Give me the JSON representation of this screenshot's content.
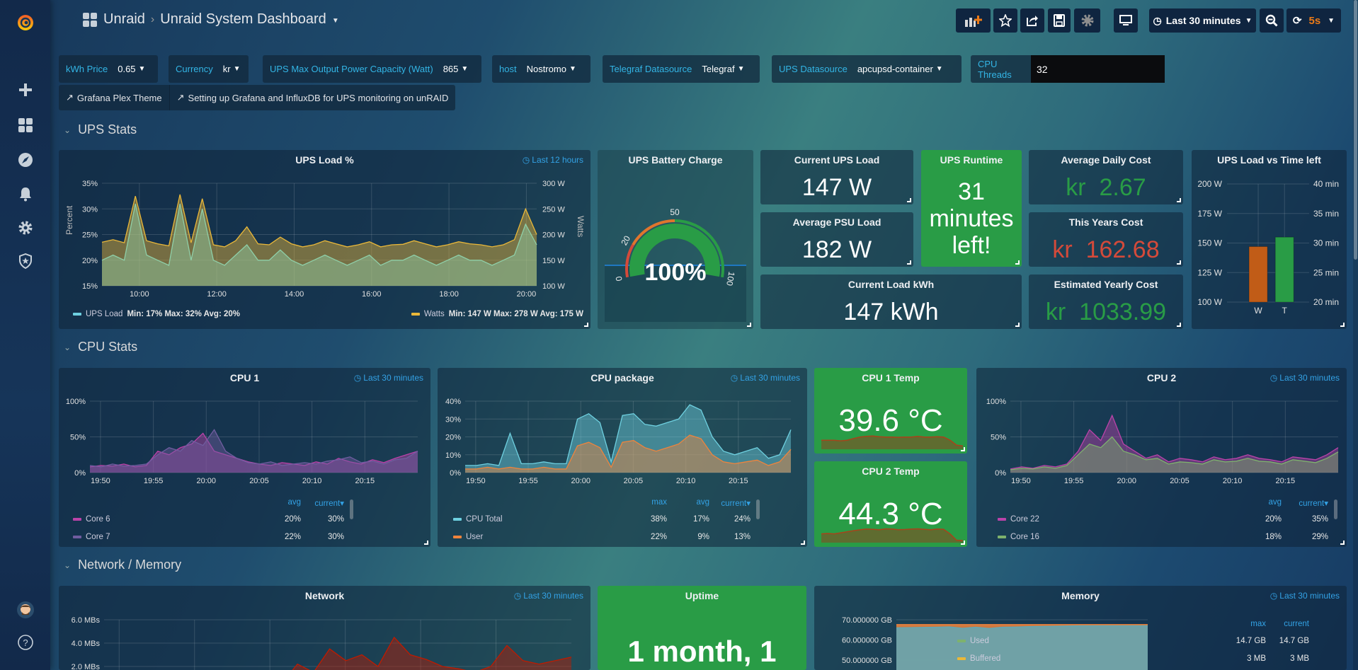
{
  "header": {
    "org": "Unraid",
    "dashboard": "Unraid System Dashboard",
    "time_range": "Last 30 minutes",
    "refresh": "5s"
  },
  "colors": {
    "green": "#299c46",
    "red": "#d44a3a",
    "orange": "#e0752d",
    "yellow": "#eab839",
    "accent_blue": "#33b5e5"
  },
  "variables": [
    {
      "label": "kWh Price",
      "value": "0.65"
    },
    {
      "label": "Currency",
      "value": "kr"
    },
    {
      "label": "UPS Max Output Power Capacity (Watt)",
      "value": "865"
    },
    {
      "label": "host",
      "value": "Nostromo"
    },
    {
      "label": "Telegraf Datasource",
      "value": "Telegraf"
    },
    {
      "label": "UPS Datasource",
      "value": "apcupsd-container"
    },
    {
      "label": "CPU Threads",
      "value": "32"
    }
  ],
  "links": [
    "Grafana Plex Theme",
    "Setting up Grafana and InfluxDB for UPS monitoring on unRAID"
  ],
  "rows": [
    "UPS Stats",
    "CPU Stats",
    "Network / Memory"
  ],
  "panels": {
    "ups_load": {
      "title": "UPS Load %",
      "time_override": "Last 12 hours",
      "ylabel": "Percent",
      "y2label": "Watts",
      "legend": [
        {
          "name": "UPS Load",
          "stats": "Min: 17%  Max: 32%  Avg: 20%"
        },
        {
          "name": "Watts",
          "stats": "Min: 147 W  Max: 278 W  Avg: 175 W"
        }
      ]
    },
    "battery": {
      "title": "UPS Battery Charge",
      "value": "100%"
    },
    "current_ups_load": {
      "title": "Current UPS Load",
      "value": "147 W"
    },
    "avg_psu_load": {
      "title": "Average PSU Load",
      "value": "182 W"
    },
    "current_kwh": {
      "title": "Current Load kWh",
      "value": "147 kWh"
    },
    "runtime": {
      "title": "UPS Runtime",
      "lines": [
        "31",
        "minutes",
        "left!"
      ]
    },
    "avg_daily_cost": {
      "title": "Average Daily Cost",
      "prefix": "kr",
      "value": "2.67"
    },
    "year_cost": {
      "title": "This Years Cost",
      "prefix": "kr",
      "value": "162.68"
    },
    "yearly_cost": {
      "title": "Estimated Yearly Cost",
      "prefix": "kr",
      "value": "1033.99"
    },
    "load_vs_time": {
      "title": "UPS Load vs Time left"
    },
    "cpu1": {
      "title": "CPU 1",
      "time_override": "Last 30 minutes",
      "cols": [
        "avg",
        "current"
      ],
      "rows": [
        {
          "name": "Core 6",
          "avg": "20%",
          "current": "30%"
        },
        {
          "name": "Core 7",
          "avg": "22%",
          "current": "30%"
        }
      ]
    },
    "cpu_package": {
      "title": "CPU package",
      "time_override": "Last 30 minutes",
      "cols": [
        "max",
        "avg",
        "current"
      ],
      "rows": [
        {
          "name": "CPU Total",
          "max": "38%",
          "avg": "17%",
          "current": "24%"
        },
        {
          "name": "User",
          "max": "22%",
          "avg": "9%",
          "current": "13%"
        }
      ]
    },
    "cpu1_temp": {
      "title": "CPU 1 Temp",
      "value": "39.6 °C",
      "spark": [
        37,
        37,
        37,
        36.8,
        37,
        37.5,
        38,
        38.2,
        38.3,
        38.1,
        38,
        38,
        37.9,
        38,
        38,
        38.2,
        38,
        38,
        38.1,
        38,
        37,
        35.5,
        35.2
      ]
    },
    "cpu2_temp": {
      "title": "CPU 2 Temp",
      "value": "44.3 °C",
      "spark": [
        40,
        40.2,
        40,
        40.5,
        41,
        41.5,
        42,
        42.3,
        42.2,
        42,
        42.4,
        42.3,
        42,
        42.1,
        42.3,
        42.4,
        42.2,
        42,
        42.3,
        42.2,
        40,
        37,
        36.8
      ]
    },
    "cpu2": {
      "title": "CPU 2",
      "time_override": "Last 30 minutes",
      "cols": [
        "avg",
        "current"
      ],
      "rows": [
        {
          "name": "Core 22",
          "avg": "20%",
          "current": "35%"
        },
        {
          "name": "Core 16",
          "avg": "18%",
          "current": "29%"
        }
      ]
    },
    "network": {
      "title": "Network",
      "time_override": "Last 30 minutes"
    },
    "uptime": {
      "title": "Uptime",
      "value": "1 month, 1"
    },
    "memory": {
      "title": "Memory",
      "time_override": "Last 30 minutes",
      "cols": [
        "max",
        "current"
      ],
      "rows": [
        {
          "name": "Used",
          "max": "14.7 GB",
          "current": "14.7 GB"
        },
        {
          "name": "Buffered",
          "max": "3 MB",
          "current": "3 MB"
        }
      ]
    }
  },
  "chart_data": [
    {
      "id": "ups_load",
      "type": "area",
      "xlim": [
        "09:02",
        "20:16"
      ],
      "xticks": [
        "10:00",
        "12:00",
        "14:00",
        "16:00",
        "18:00",
        "20:00"
      ],
      "ylim": [
        15,
        35
      ],
      "yticks": [
        {
          "value": 35,
          "label": "35%"
        },
        {
          "value": 30,
          "label": "30%"
        },
        {
          "value": 25,
          "label": "25%"
        },
        {
          "value": 20,
          "label": "20%"
        },
        {
          "value": 15,
          "label": "15%"
        }
      ],
      "y2lim": [
        100,
        300
      ],
      "y2ticks": [
        {
          "value": 300,
          "label": "300 W"
        },
        {
          "value": 250,
          "label": "250 W"
        },
        {
          "value": 200,
          "label": "200 W"
        },
        {
          "value": 150,
          "label": "150 W"
        },
        {
          "value": 100,
          "label": "100 W"
        }
      ],
      "series": [
        {
          "name": "Watts",
          "axis": "right",
          "color": "#eab839",
          "values": [
            185,
            190,
            184,
            275,
            188,
            182,
            178,
            278,
            184,
            270,
            180,
            176,
            188,
            215,
            182,
            180,
            195,
            182,
            176,
            180,
            188,
            182,
            176,
            180,
            186,
            176,
            180,
            181,
            188,
            182,
            176,
            180,
            186,
            182,
            180,
            176,
            180,
            190,
            250,
            200
          ]
        },
        {
          "name": "UPS Load",
          "axis": "left",
          "color": "#8fcfa8",
          "values": [
            20,
            21,
            20,
            31,
            21,
            20,
            19,
            31,
            20,
            30,
            20,
            19,
            21,
            23,
            20,
            20,
            22,
            20,
            19,
            20,
            21,
            20,
            19,
            20,
            21,
            19,
            20,
            20,
            21,
            20,
            19,
            20,
            21,
            20,
            20,
            19,
            20,
            21,
            27,
            23
          ]
        }
      ]
    },
    {
      "id": "load_vs_time",
      "type": "bar",
      "categories": [
        "W",
        "T"
      ],
      "ylim": [
        100,
        200
      ],
      "y2lim": [
        20,
        40
      ],
      "yticks": [
        {
          "value": 200,
          "label": "200 W"
        },
        {
          "value": 175,
          "label": "175 W"
        },
        {
          "value": 150,
          "label": "150 W"
        },
        {
          "value": 125,
          "label": "125 W"
        },
        {
          "value": 100,
          "label": "100 W"
        }
      ],
      "y2ticks": [
        {
          "value": 40,
          "label": "40 min"
        },
        {
          "value": 35,
          "label": "35 min"
        },
        {
          "value": 30,
          "label": "30 min"
        },
        {
          "value": 25,
          "label": "25 min"
        },
        {
          "value": 20,
          "label": "20 min"
        }
      ],
      "bars": [
        {
          "category": "W",
          "value": 147,
          "axis": "left",
          "color": "#c15c17"
        },
        {
          "category": "T",
          "value": 31,
          "axis": "right",
          "color": "#299c46"
        }
      ]
    },
    {
      "id": "battery_gauge",
      "type": "gauge",
      "value": 100,
      "min": 0,
      "max": 100,
      "thresholds": [
        20,
        50
      ],
      "tick_labels": [
        "0",
        "20",
        "50",
        "100"
      ]
    },
    {
      "id": "cpu1",
      "type": "area",
      "xlim": [
        "19:49",
        "20:20"
      ],
      "xticks": [
        "19:50",
        "19:55",
        "20:00",
        "20:05",
        "20:10",
        "20:15"
      ],
      "ylim": [
        0,
        100
      ],
      "yticks": [
        {
          "value": 100,
          "label": "100%"
        },
        {
          "value": 50,
          "label": "50%"
        },
        {
          "value": 0,
          "label": "0%"
        }
      ],
      "series": [
        {
          "name": "Core 6",
          "color": "#ba43a9",
          "values": [
            8,
            10,
            9,
            12,
            8,
            10,
            30,
            25,
            35,
            40,
            55,
            30,
            25,
            20,
            15,
            12,
            10,
            14,
            12,
            10,
            15,
            12,
            20,
            15,
            12,
            18,
            14,
            20,
            25,
            30
          ]
        },
        {
          "name": "Core 7",
          "color": "#705da0",
          "values": [
            10,
            8,
            12,
            9,
            10,
            12,
            25,
            35,
            30,
            45,
            38,
            60,
            30,
            20,
            14,
            12,
            15,
            10,
            12,
            14,
            12,
            16,
            18,
            22,
            14,
            16,
            12,
            18,
            20,
            30
          ]
        }
      ]
    },
    {
      "id": "cpu_package",
      "type": "area",
      "xlim": [
        "19:49",
        "20:20"
      ],
      "xticks": [
        "19:50",
        "19:55",
        "20:00",
        "20:05",
        "20:10",
        "20:15"
      ],
      "ylim": [
        0,
        40
      ],
      "yticks": [
        {
          "value": 40,
          "label": "40%"
        },
        {
          "value": 30,
          "label": "30%"
        },
        {
          "value": 20,
          "label": "20%"
        },
        {
          "value": 10,
          "label": "10%"
        },
        {
          "value": 0,
          "label": "0%"
        }
      ],
      "series": [
        {
          "name": "CPU Total",
          "color": "#6ed0e0",
          "values": [
            4,
            4,
            5,
            4,
            22,
            5,
            5,
            6,
            5,
            5,
            30,
            33,
            28,
            6,
            32,
            33,
            27,
            26,
            28,
            30,
            38,
            35,
            20,
            12,
            10,
            12,
            14,
            8,
            10,
            24
          ]
        },
        {
          "name": "User",
          "color": "#ef843c",
          "values": [
            2,
            2,
            3,
            2,
            3,
            2,
            2,
            3,
            2,
            2,
            15,
            17,
            14,
            3,
            17,
            18,
            14,
            12,
            14,
            16,
            21,
            19,
            10,
            6,
            5,
            6,
            7,
            4,
            6,
            13
          ]
        }
      ]
    },
    {
      "id": "cpu2",
      "type": "area",
      "xlim": [
        "19:49",
        "20:20"
      ],
      "xticks": [
        "19:50",
        "19:55",
        "20:00",
        "20:05",
        "20:10",
        "20:15"
      ],
      "ylim": [
        0,
        100
      ],
      "yticks": [
        {
          "value": 100,
          "label": "100%"
        },
        {
          "value": 50,
          "label": "50%"
        },
        {
          "value": 0,
          "label": "0%"
        }
      ],
      "series": [
        {
          "name": "Core 22",
          "color": "#ba43a9",
          "values": [
            5,
            8,
            6,
            10,
            8,
            12,
            30,
            60,
            45,
            80,
            40,
            30,
            20,
            25,
            15,
            20,
            18,
            15,
            22,
            18,
            20,
            25,
            20,
            18,
            15,
            22,
            20,
            18,
            25,
            35
          ]
        },
        {
          "name": "Core 16",
          "color": "#7eb26d",
          "values": [
            4,
            6,
            5,
            8,
            6,
            10,
            25,
            40,
            35,
            50,
            30,
            25,
            18,
            20,
            12,
            15,
            14,
            12,
            18,
            15,
            16,
            20,
            16,
            15,
            12,
            18,
            16,
            14,
            20,
            29
          ]
        }
      ]
    },
    {
      "id": "network",
      "type": "area",
      "xlim": [
        "19:49",
        "20:20"
      ],
      "xticks": [
        "19:50",
        "19:55",
        "20:00",
        "20:05",
        "20:10",
        "20:15"
      ],
      "ylim": [
        0,
        6
      ],
      "yticks": [
        {
          "value": 6,
          "label": "6.0 MBs"
        },
        {
          "value": 4,
          "label": "4.0 MBs"
        },
        {
          "value": 2,
          "label": "2.0 MBs"
        }
      ],
      "series": [
        {
          "color": "#bf1b00",
          "values": [
            0.3,
            0.3,
            0.4,
            0.3,
            0.3,
            0.4,
            0.3,
            0.3,
            0.4,
            0.3,
            0.3,
            0.5,
            2.2,
            1.5,
            3.5,
            2.5,
            3.0,
            2.0,
            4.5,
            3.0,
            2.6,
            2.0,
            1.8,
            1.5,
            2.0,
            3.8,
            2.5,
            2.2,
            2.5,
            2.8
          ]
        }
      ]
    },
    {
      "id": "memory",
      "type": "area",
      "xlim": [
        "19:49",
        "20:20"
      ],
      "xticks": [],
      "ylim": [
        30,
        70
      ],
      "yticks": [
        {
          "value": 70,
          "label": "70.000000 GB"
        },
        {
          "value": 60,
          "label": "60.000000 GB"
        },
        {
          "value": 50,
          "label": "50.000000 GB"
        }
      ],
      "series": [
        {
          "color": "#ef843c",
          "values": [
            67.6,
            67.6,
            67.6,
            67.6,
            67.6,
            67.6,
            67.6,
            67.6,
            67.6,
            67.6,
            67.6,
            67.6,
            67.6,
            67.6,
            67.6,
            67.6,
            67.6,
            67.6,
            67.6,
            67.6
          ]
        },
        {
          "color": "#5fa8b8",
          "values": [
            66,
            66.1,
            66.2,
            66.3,
            66.5,
            65.8,
            66.3,
            65.7,
            66.3,
            66.4,
            66.6,
            66.7,
            66.8,
            66.9,
            67,
            67,
            67,
            67,
            67,
            67
          ]
        }
      ]
    }
  ]
}
